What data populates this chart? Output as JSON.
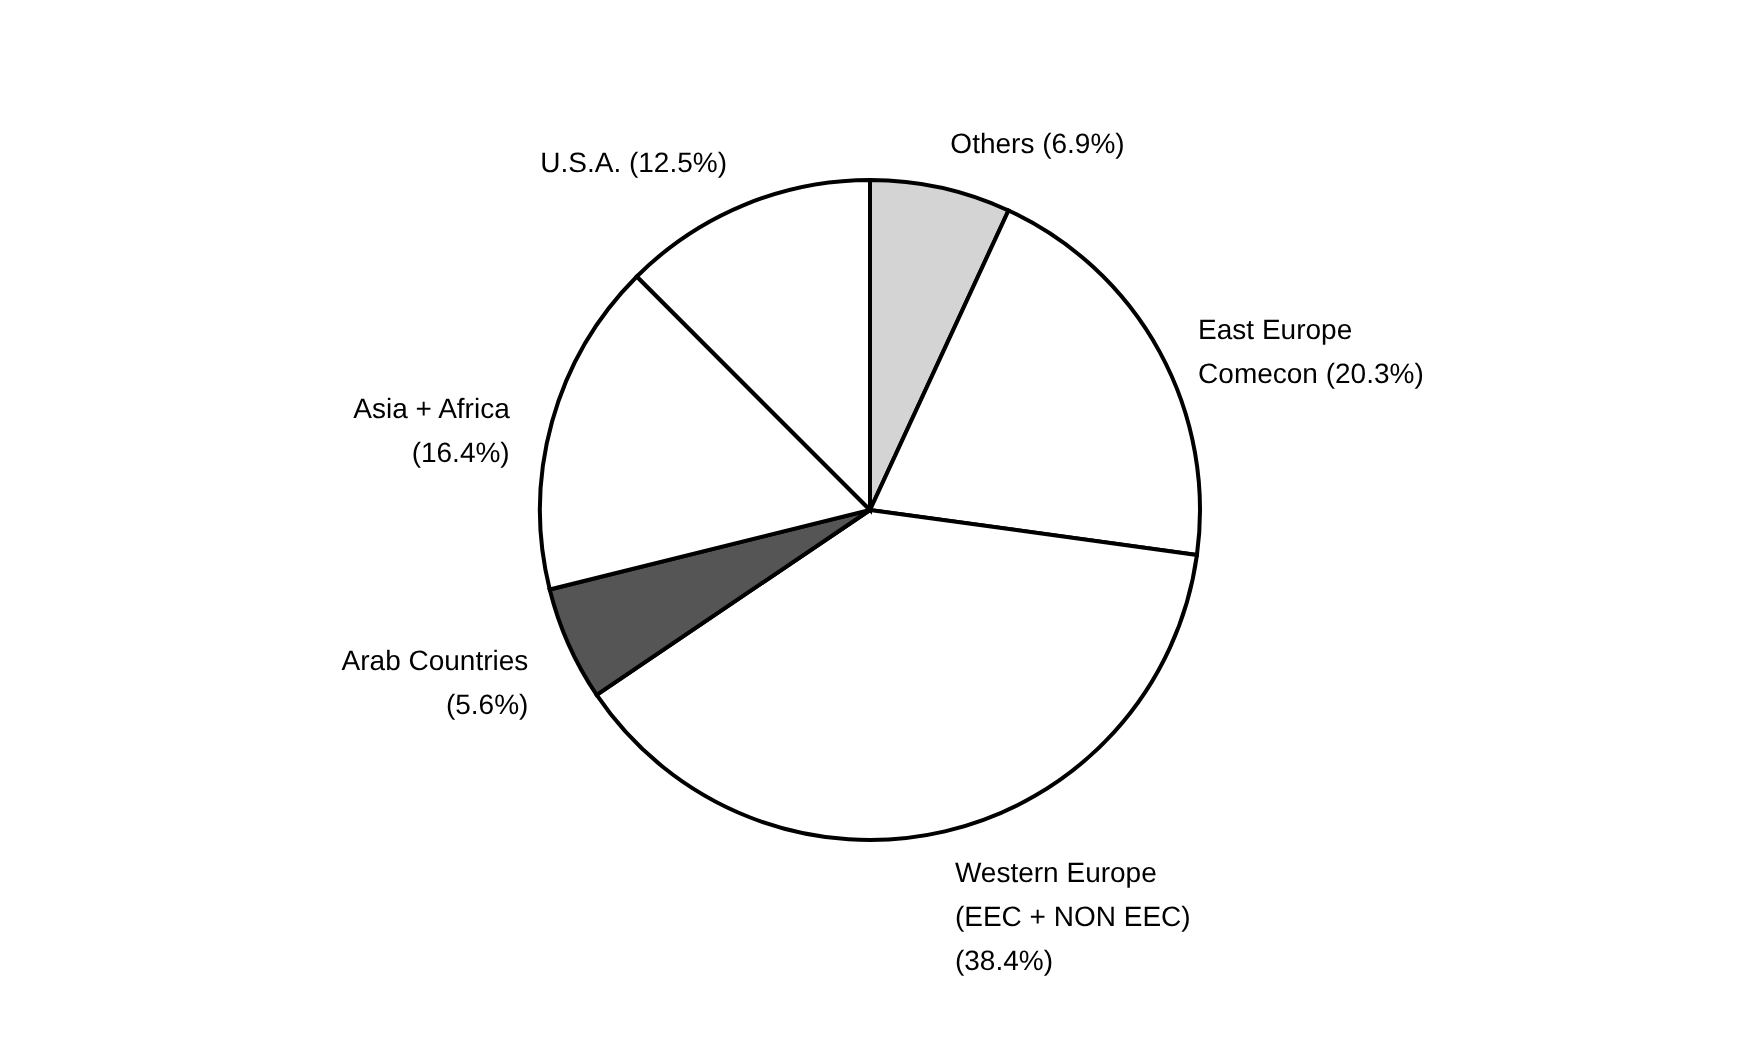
{
  "chart_data": {
    "type": "pie",
    "categories": [
      "Others (6.9%)",
      "East Europe\nComecon (20.3%)",
      "Western Europe\n(EEC + NON EEC)\n(38.4%)",
      "Arab Countries\n(5.6%)",
      "Asia + Africa\n(16.4%)",
      "U.S.A. (12.5%)"
    ],
    "values": [
      6.9,
      20.3,
      38.4,
      5.6,
      16.4,
      12.5
    ],
    "colors": [
      "#d4d4d4",
      "#ffffff",
      "#ffffff",
      "#555555",
      "#ffffff",
      "#ffffff"
    ],
    "legend": false
  }
}
